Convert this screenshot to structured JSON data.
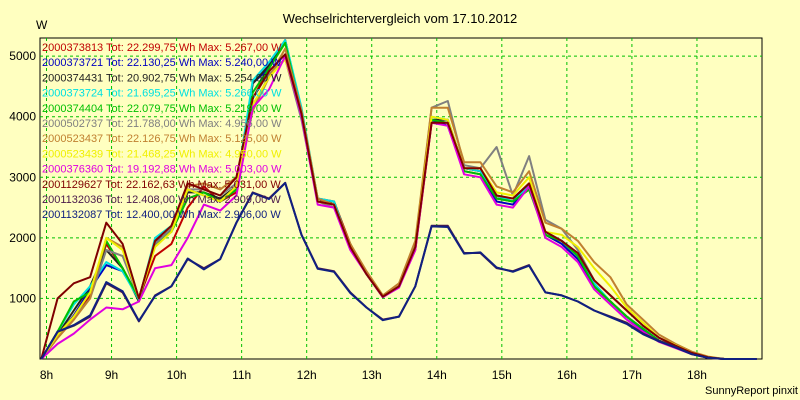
{
  "chart_data": {
    "type": "line",
    "title": "Wechselrichtervergleich vom 17.10.2012",
    "ylabel": "W",
    "footer": "SunnyReport pinxit",
    "x_tick_labels": [
      "8h",
      "9h",
      "10h",
      "11h",
      "12h",
      "13h",
      "14h",
      "15h",
      "16h",
      "17h",
      "18h"
    ],
    "y_ticks": [
      1000,
      2000,
      3000,
      4000,
      5000
    ],
    "xlim": [
      7.9,
      19.0
    ],
    "ylim": [
      0,
      5300
    ],
    "grid": true,
    "legend_position": "top-left",
    "x": [
      7.92,
      8.17,
      8.42,
      8.67,
      8.92,
      9.17,
      9.42,
      9.67,
      9.92,
      10.17,
      10.42,
      10.67,
      10.92,
      11.17,
      11.42,
      11.67,
      11.92,
      12.17,
      12.42,
      12.67,
      12.92,
      13.17,
      13.42,
      13.67,
      13.92,
      14.17,
      14.42,
      14.67,
      14.92,
      15.17,
      15.42,
      15.67,
      15.92,
      16.17,
      16.42,
      16.67,
      16.92,
      17.17,
      17.42,
      17.67,
      17.92,
      18.17,
      18.42,
      18.67,
      18.92
    ],
    "series": [
      {
        "name": "2000373813 Tot: 22.299,75 Wh Max: 5.267,00 W",
        "color": "#c00000",
        "values": [
          0,
          350,
          650,
          1050,
          1900,
          1500,
          1000,
          1700,
          1900,
          2500,
          2850,
          2600,
          2750,
          4300,
          4800,
          5267,
          4100,
          2650,
          2600,
          1900,
          1400,
          1050,
          1200,
          1800,
          3900,
          3900,
          3150,
          3100,
          2700,
          2600,
          2800,
          2100,
          1950,
          1700,
          1200,
          950,
          700,
          500,
          300,
          200,
          100,
          30,
          0,
          0,
          0
        ]
      },
      {
        "name": "2000373721 Tot: 22.130,25 Wh Max: 5.240,00 W",
        "color": "#0000c0",
        "values": [
          0,
          380,
          720,
          1150,
          1550,
          1450,
          1000,
          1950,
          2100,
          2800,
          2700,
          2600,
          2800,
          4550,
          4800,
          5240,
          4050,
          2600,
          2550,
          1850,
          1400,
          1030,
          1180,
          1850,
          3950,
          3850,
          3100,
          3050,
          2600,
          2550,
          2850,
          2050,
          1900,
          1650,
          1200,
          950,
          700,
          480,
          300,
          200,
          100,
          30,
          0,
          0,
          0
        ]
      },
      {
        "name": "2000374431 Tot: 20.902,75 Wh Max: 5.254,00 W",
        "color": "#222222",
        "values": [
          0,
          400,
          800,
          1200,
          1800,
          1500,
          950,
          1900,
          2150,
          2750,
          2750,
          2650,
          2850,
          4550,
          4850,
          5254,
          4100,
          2600,
          2600,
          1850,
          1400,
          1020,
          1200,
          1850,
          3950,
          3950,
          3150,
          3100,
          2650,
          2600,
          2900,
          2050,
          1950,
          1700,
          1200,
          950,
          700,
          500,
          300,
          200,
          100,
          30,
          0,
          0,
          0
        ]
      },
      {
        "name": "2000373724 Tot: 21.695,25 Wh Max: 5.266,00 W",
        "color": "#00e0e0",
        "values": [
          0,
          450,
          900,
          1200,
          1600,
          1450,
          980,
          2000,
          2200,
          2800,
          2700,
          2600,
          2850,
          4600,
          4900,
          5266,
          4150,
          2650,
          2600,
          1850,
          1400,
          1040,
          1200,
          1900,
          4000,
          3950,
          3150,
          3100,
          2700,
          2600,
          2850,
          2100,
          1950,
          1700,
          1250,
          950,
          700,
          500,
          300,
          200,
          100,
          30,
          0,
          0,
          0
        ]
      },
      {
        "name": "2000374404 Tot: 22.079,75 Wh Max: 5.219,00 W",
        "color": "#00c000",
        "values": [
          0,
          450,
          950,
          1100,
          1950,
          1500,
          1000,
          1900,
          2100,
          2650,
          2750,
          2600,
          2800,
          4400,
          4800,
          5219,
          4050,
          2600,
          2550,
          1850,
          1400,
          1030,
          1200,
          1850,
          3950,
          3900,
          3100,
          3050,
          2650,
          2600,
          2800,
          2050,
          1950,
          1700,
          1200,
          950,
          700,
          500,
          300,
          200,
          100,
          30,
          0,
          0,
          0
        ]
      },
      {
        "name": "2000502737 Tot: 21.788,00 Wh Max: 4.956,00 W",
        "color": "#808080",
        "values": [
          0,
          380,
          680,
          1000,
          1800,
          1700,
          1000,
          1900,
          2150,
          2800,
          2800,
          2700,
          2900,
          4100,
          4700,
          4956,
          3950,
          2600,
          2500,
          1900,
          1400,
          1050,
          1200,
          1850,
          4150,
          4260,
          3200,
          3150,
          3500,
          2700,
          3350,
          2300,
          2150,
          1800,
          1300,
          1050,
          800,
          550,
          350,
          220,
          100,
          30,
          0,
          0,
          0
        ]
      },
      {
        "name": "2000523437 Tot: 22.126,75 Wh Max: 5.125,00 W",
        "color": "#c08030",
        "values": [
          0,
          350,
          650,
          1000,
          2000,
          1850,
          1000,
          1950,
          2200,
          2850,
          2900,
          2800,
          3000,
          4100,
          4650,
          5125,
          4100,
          2650,
          2550,
          1900,
          1450,
          1050,
          1250,
          1950,
          4150,
          4150,
          3250,
          3250,
          2850,
          2750,
          3100,
          2250,
          2150,
          1950,
          1600,
          1350,
          900,
          650,
          400,
          250,
          120,
          40,
          0,
          0,
          0
        ]
      },
      {
        "name": "2000523439 Tot: 21.468,25 Wh Max: 4.950,00 W",
        "color": "#f0f000",
        "values": [
          0,
          400,
          700,
          1100,
          2000,
          1800,
          1000,
          1850,
          2100,
          2800,
          2700,
          2600,
          2850,
          4200,
          4650,
          4950,
          4050,
          2600,
          2550,
          1850,
          1400,
          1030,
          1200,
          1850,
          4000,
          3950,
          3150,
          3150,
          2750,
          2700,
          3000,
          2100,
          2050,
          1850,
          1500,
          1200,
          850,
          600,
          350,
          230,
          100,
          30,
          0,
          0,
          0
        ]
      },
      {
        "name": "2000376360 Tot: 19.192,88 Wh Max: 5.003,00 W",
        "color": "#e000e0",
        "values": [
          0,
          250,
          420,
          650,
          850,
          820,
          950,
          1500,
          1550,
          2000,
          2550,
          2450,
          2700,
          4150,
          4450,
          5003,
          4000,
          2550,
          2500,
          1800,
          1400,
          1020,
          1180,
          1800,
          3900,
          3850,
          3050,
          3000,
          2550,
          2500,
          2850,
          2000,
          1850,
          1600,
          1150,
          900,
          650,
          450,
          280,
          180,
          80,
          20,
          0,
          0,
          0
        ]
      },
      {
        "name": "2001129627 Tot: 22.162,63 Wh Max: 5.031,00 W",
        "color": "#800000",
        "values": [
          0,
          1000,
          1250,
          1350,
          2250,
          1900,
          1000,
          1950,
          2200,
          2900,
          2800,
          2700,
          3000,
          4300,
          4750,
          5031,
          4050,
          2600,
          2550,
          1850,
          1400,
          1030,
          1200,
          1850,
          3900,
          3900,
          3150,
          3150,
          2700,
          2650,
          2900,
          2100,
          1950,
          1750,
          1300,
          1050,
          800,
          550,
          350,
          220,
          100,
          30,
          0,
          0,
          0
        ]
      },
      {
        "name": "2001132036 Tot: 12.408,00 Wh Max: 2.909,00 W",
        "color": "#4a1a4a",
        "values": [
          0,
          450,
          550,
          700,
          1250,
          1100,
          620,
          1050,
          1200,
          1650,
          1500,
          1650,
          2250,
          2750,
          2650,
          2909,
          2050,
          1500,
          1450,
          1100,
          850,
          650,
          700,
          1200,
          2200,
          2200,
          1750,
          1750,
          1500,
          1450,
          1550,
          1100,
          1050,
          950,
          800,
          700,
          600,
          420,
          300,
          200,
          80,
          20,
          0,
          0,
          0
        ]
      },
      {
        "name": "2001132087 Tot: 12.400,00 Wh Max: 2.906,00 W",
        "color": "#102080",
        "values": [
          0,
          450,
          560,
          720,
          1270,
          1120,
          630,
          1040,
          1200,
          1660,
          1480,
          1650,
          2250,
          2740,
          2640,
          2906,
          2050,
          1490,
          1440,
          1090,
          850,
          640,
          700,
          1200,
          2190,
          2180,
          1740,
          1760,
          1510,
          1440,
          1540,
          1100,
          1050,
          950,
          800,
          690,
          580,
          410,
          290,
          190,
          80,
          20,
          0,
          0,
          0
        ]
      }
    ]
  }
}
